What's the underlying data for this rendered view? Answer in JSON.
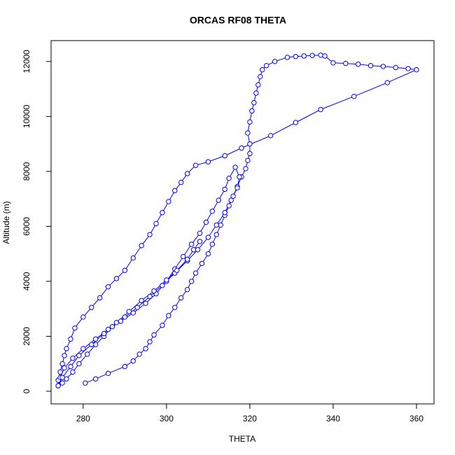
{
  "chart_data": {
    "type": "line",
    "title": "ORCAS RF08 THETA",
    "x_label": "THETA",
    "y_label": "Altitude (m)",
    "color": "#0000ff",
    "markers": true,
    "xlim": [
      272.3,
      364.2
    ],
    "ylim": [
      -460,
      12760
    ],
    "xticks": [
      280,
      300,
      320,
      340,
      360
    ],
    "yticks": [
      0,
      2000,
      4000,
      6000,
      8000,
      10000,
      12000
    ],
    "x": [
      280.5,
      283,
      286,
      290,
      292,
      293.5,
      295,
      296,
      297,
      299,
      300.5,
      302,
      303.5,
      305,
      306,
      307,
      308.5,
      310,
      311,
      312,
      313,
      314,
      315,
      316,
      317,
      318,
      319,
      319.5,
      320,
      320,
      319.5,
      320,
      320.5,
      321,
      321.5,
      322,
      322.5,
      323,
      324,
      326,
      329,
      331,
      333,
      335,
      337,
      338,
      340,
      343,
      346,
      349,
      352,
      355,
      358,
      360,
      353,
      345,
      337,
      331,
      325,
      318,
      314,
      310,
      307,
      305,
      303.5,
      302,
      300.5,
      299,
      297.5,
      296,
      294,
      292,
      290,
      288,
      286,
      284,
      282,
      280,
      278,
      277,
      276,
      275.5,
      275,
      274.5,
      274,
      274,
      275,
      276,
      277.5,
      279,
      281,
      283,
      285,
      287,
      290,
      293,
      296,
      299,
      302,
      305,
      307.5,
      310,
      312,
      314,
      315.5,
      317,
      317.5,
      316.5,
      315,
      314,
      312.5,
      311,
      309.5,
      308,
      306,
      304,
      302,
      300,
      297.5,
      295,
      292,
      289,
      286,
      283,
      280,
      277.5,
      275.5,
      274.5,
      274,
      275,
      277,
      279,
      282,
      285,
      288,
      291,
      294,
      297,
      300,
      302.5,
      305,
      306.5,
      308
    ],
    "values": [
      300,
      450,
      650,
      900,
      1100,
      1350,
      1550,
      1800,
      2050,
      2400,
      2750,
      3050,
      3400,
      3700,
      4000,
      4300,
      4650,
      5000,
      5350,
      5700,
      6050,
      6400,
      6750,
      7100,
      7450,
      7800,
      8100,
      8400,
      8650,
      9000,
      9400,
      9800,
      10200,
      10500,
      10850,
      11150,
      11450,
      11700,
      11850,
      12000,
      12150,
      12180,
      12200,
      12220,
      12230,
      12200,
      11950,
      11930,
      11900,
      11850,
      11820,
      11780,
      11740,
      11700,
      11230,
      10730,
      10250,
      9780,
      9300,
      8850,
      8570,
      8350,
      8220,
      7920,
      7600,
      7300,
      6900,
      6500,
      6100,
      5700,
      5300,
      4850,
      4400,
      4100,
      3800,
      3400,
      3050,
      2700,
      2300,
      1900,
      1550,
      1300,
      1000,
      700,
      400,
      200,
      300,
      450,
      700,
      1000,
      1350,
      1700,
      2000,
      2350,
      2700,
      3050,
      3450,
      3850,
      4300,
      4750,
      5150,
      5600,
      6050,
      6500,
      6950,
      7400,
      7800,
      8150,
      7750,
      7350,
      6950,
      6550,
      6150,
      5750,
      5350,
      4900,
      4450,
      4000,
      3550,
      3200,
      2850,
      2550,
      2250,
      1900,
      1550,
      1200,
      850,
      500,
      200,
      500,
      900,
      1300,
      1700,
      2100,
      2500,
      2900,
      3300,
      3650,
      4050,
      4400,
      4800,
      5150,
      5450
    ]
  }
}
